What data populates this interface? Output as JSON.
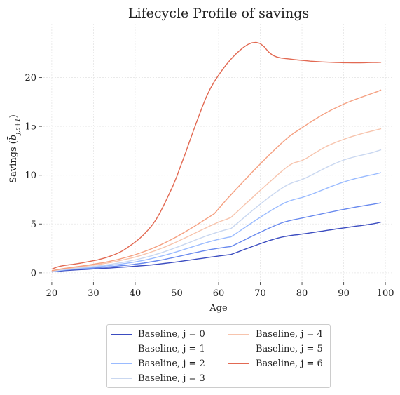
{
  "chart_data": {
    "type": "line",
    "title": "Lifecycle Profile of savings",
    "xlabel": "Age",
    "ylabel": "Savings ($\\bar{b}_{j,s+1}$)",
    "xlim": [
      18,
      102
    ],
    "ylim": [
      -0.8,
      25.5
    ],
    "xticks": [
      20,
      30,
      40,
      50,
      60,
      70,
      80,
      90,
      100
    ],
    "yticks": [
      0,
      5,
      10,
      15,
      20
    ],
    "grid": true,
    "legend_position": "bottom-center",
    "x": [
      20,
      21,
      22,
      23,
      24,
      25,
      26,
      27,
      28,
      29,
      30,
      31,
      32,
      33,
      34,
      35,
      36,
      37,
      38,
      39,
      40,
      41,
      42,
      43,
      44,
      45,
      46,
      47,
      48,
      49,
      50,
      51,
      52,
      53,
      54,
      55,
      56,
      57,
      58,
      59,
      60,
      61,
      62,
      63,
      64,
      65,
      66,
      67,
      68,
      69,
      70,
      71,
      72,
      73,
      74,
      75,
      76,
      77,
      78,
      79,
      80,
      81,
      82,
      83,
      84,
      85,
      86,
      87,
      88,
      89,
      90,
      91,
      92,
      93,
      94,
      95,
      96,
      97,
      98,
      99
    ],
    "series": [
      {
        "name": "Baseline, j = 0",
        "color": "#3b4cc0",
        "values": [
          0.1,
          0.14,
          0.18,
          0.22,
          0.25,
          0.28,
          0.3,
          0.33,
          0.35,
          0.37,
          0.4,
          0.42,
          0.44,
          0.47,
          0.49,
          0.52,
          0.55,
          0.58,
          0.61,
          0.64,
          0.67,
          0.71,
          0.74,
          0.78,
          0.82,
          0.87,
          0.91,
          0.96,
          1.01,
          1.06,
          1.12,
          1.18,
          1.24,
          1.3,
          1.36,
          1.42,
          1.48,
          1.54,
          1.6,
          1.66,
          1.72,
          1.77,
          1.83,
          1.88,
          2.04,
          2.2,
          2.36,
          2.52,
          2.68,
          2.83,
          2.98,
          3.13,
          3.28,
          3.41,
          3.53,
          3.64,
          3.73,
          3.8,
          3.86,
          3.91,
          3.97,
          4.03,
          4.09,
          4.15,
          4.22,
          4.28,
          4.35,
          4.41,
          4.48,
          4.54,
          4.6,
          4.66,
          4.72,
          4.78,
          4.83,
          4.89,
          4.95,
          5.01,
          5.1,
          5.2
        ]
      },
      {
        "name": "Baseline, j = 1",
        "color": "#6788ee",
        "values": [
          0.13,
          0.18,
          0.23,
          0.27,
          0.31,
          0.34,
          0.37,
          0.4,
          0.43,
          0.46,
          0.49,
          0.52,
          0.55,
          0.58,
          0.62,
          0.66,
          0.7,
          0.74,
          0.78,
          0.83,
          0.88,
          0.94,
          1.0,
          1.07,
          1.14,
          1.21,
          1.29,
          1.37,
          1.46,
          1.55,
          1.64,
          1.74,
          1.84,
          1.93,
          2.03,
          2.12,
          2.21,
          2.3,
          2.38,
          2.45,
          2.52,
          2.58,
          2.64,
          2.69,
          2.9,
          3.11,
          3.32,
          3.54,
          3.75,
          3.95,
          4.15,
          4.35,
          4.55,
          4.74,
          4.92,
          5.09,
          5.23,
          5.34,
          5.44,
          5.52,
          5.61,
          5.7,
          5.79,
          5.88,
          5.97,
          6.06,
          6.15,
          6.24,
          6.33,
          6.42,
          6.5,
          6.58,
          6.66,
          6.74,
          6.81,
          6.88,
          6.95,
          7.02,
          7.1,
          7.17
        ]
      },
      {
        "name": "Baseline, j = 2",
        "color": "#9abbff",
        "values": [
          0.15,
          0.2,
          0.26,
          0.31,
          0.35,
          0.39,
          0.43,
          0.47,
          0.5,
          0.54,
          0.58,
          0.62,
          0.66,
          0.7,
          0.75,
          0.8,
          0.86,
          0.92,
          0.98,
          1.05,
          1.12,
          1.2,
          1.28,
          1.37,
          1.47,
          1.57,
          1.68,
          1.79,
          1.91,
          2.03,
          2.16,
          2.29,
          2.43,
          2.56,
          2.7,
          2.83,
          2.96,
          3.09,
          3.21,
          3.32,
          3.43,
          3.52,
          3.61,
          3.69,
          3.97,
          4.26,
          4.55,
          4.84,
          5.13,
          5.41,
          5.69,
          5.96,
          6.23,
          6.49,
          6.74,
          6.98,
          7.19,
          7.36,
          7.5,
          7.61,
          7.72,
          7.85,
          8.0,
          8.16,
          8.33,
          8.5,
          8.67,
          8.84,
          9.0,
          9.16,
          9.3,
          9.44,
          9.56,
          9.68,
          9.78,
          9.88,
          9.97,
          10.06,
          10.16,
          10.26
        ]
      },
      {
        "name": "Baseline, j = 3",
        "color": "#c9d7f0",
        "values": [
          0.16,
          0.22,
          0.28,
          0.34,
          0.38,
          0.43,
          0.48,
          0.52,
          0.57,
          0.61,
          0.66,
          0.71,
          0.76,
          0.81,
          0.87,
          0.93,
          1.0,
          1.07,
          1.15,
          1.24,
          1.33,
          1.43,
          1.53,
          1.64,
          1.76,
          1.89,
          2.02,
          2.16,
          2.31,
          2.46,
          2.62,
          2.78,
          2.95,
          3.11,
          3.28,
          3.45,
          3.61,
          3.77,
          3.92,
          4.06,
          4.2,
          4.32,
          4.44,
          4.54,
          4.9,
          5.26,
          5.62,
          5.98,
          6.34,
          6.69,
          7.03,
          7.37,
          7.7,
          8.02,
          8.33,
          8.62,
          8.89,
          9.11,
          9.28,
          9.41,
          9.56,
          9.74,
          9.95,
          10.17,
          10.39,
          10.61,
          10.82,
          11.02,
          11.21,
          11.39,
          11.55,
          11.69,
          11.81,
          11.92,
          12.02,
          12.12,
          12.22,
          12.33,
          12.47,
          12.6
        ]
      },
      {
        "name": "Baseline, j = 4",
        "color": "#f7c4ad",
        "values": [
          0.2,
          0.27,
          0.34,
          0.4,
          0.46,
          0.51,
          0.57,
          0.62,
          0.67,
          0.73,
          0.79,
          0.85,
          0.91,
          0.98,
          1.05,
          1.13,
          1.22,
          1.31,
          1.41,
          1.51,
          1.62,
          1.74,
          1.87,
          2.0,
          2.15,
          2.3,
          2.46,
          2.63,
          2.81,
          2.99,
          3.18,
          3.38,
          3.58,
          3.78,
          3.99,
          4.2,
          4.41,
          4.61,
          4.81,
          5.0,
          5.2,
          5.35,
          5.5,
          5.68,
          6.08,
          6.48,
          6.88,
          7.27,
          7.66,
          8.05,
          8.44,
          8.83,
          9.22,
          9.6,
          9.98,
          10.35,
          10.7,
          11.02,
          11.26,
          11.37,
          11.5,
          11.72,
          11.98,
          12.25,
          12.51,
          12.76,
          12.98,
          13.17,
          13.35,
          13.51,
          13.67,
          13.82,
          13.96,
          14.09,
          14.21,
          14.33,
          14.44,
          14.55,
          14.66,
          14.76
        ]
      },
      {
        "name": "Baseline, j = 5",
        "color": "#f5a081",
        "values": [
          0.22,
          0.3,
          0.38,
          0.45,
          0.51,
          0.57,
          0.63,
          0.69,
          0.75,
          0.81,
          0.88,
          0.95,
          1.02,
          1.1,
          1.19,
          1.28,
          1.38,
          1.49,
          1.61,
          1.73,
          1.86,
          2.0,
          2.15,
          2.31,
          2.48,
          2.66,
          2.85,
          3.05,
          3.26,
          3.48,
          3.71,
          3.95,
          4.2,
          4.45,
          4.71,
          4.98,
          5.25,
          5.52,
          5.79,
          6.06,
          6.56,
          7.06,
          7.54,
          8.01,
          8.47,
          8.93,
          9.38,
          9.83,
          10.28,
          10.72,
          11.16,
          11.59,
          12.02,
          12.43,
          12.84,
          13.24,
          13.62,
          13.98,
          14.3,
          14.57,
          14.86,
          15.14,
          15.42,
          15.69,
          15.95,
          16.2,
          16.44,
          16.67,
          16.88,
          17.08,
          17.28,
          17.46,
          17.63,
          17.79,
          17.95,
          18.1,
          18.25,
          18.4,
          18.55,
          18.73
        ]
      },
      {
        "name": "Baseline, j = 6",
        "color": "#e26952",
        "values": [
          0.38,
          0.55,
          0.68,
          0.76,
          0.82,
          0.87,
          0.93,
          1.0,
          1.08,
          1.16,
          1.24,
          1.33,
          1.44,
          1.56,
          1.7,
          1.86,
          2.04,
          2.26,
          2.54,
          2.84,
          3.15,
          3.5,
          3.9,
          4.35,
          4.85,
          5.45,
          6.2,
          7.05,
          7.95,
          8.85,
          9.9,
          11.05,
          12.2,
          13.4,
          14.6,
          15.75,
          16.9,
          17.95,
          18.85,
          19.6,
          20.25,
          20.85,
          21.4,
          21.9,
          22.35,
          22.75,
          23.1,
          23.38,
          23.55,
          23.6,
          23.48,
          23.12,
          22.62,
          22.27,
          22.1,
          22.0,
          21.95,
          21.9,
          21.85,
          21.8,
          21.76,
          21.72,
          21.68,
          21.65,
          21.62,
          21.6,
          21.58,
          21.56,
          21.54,
          21.53,
          21.52,
          21.52,
          21.51,
          21.51,
          21.51,
          21.52,
          21.53,
          21.54,
          21.55,
          21.56
        ]
      }
    ]
  }
}
